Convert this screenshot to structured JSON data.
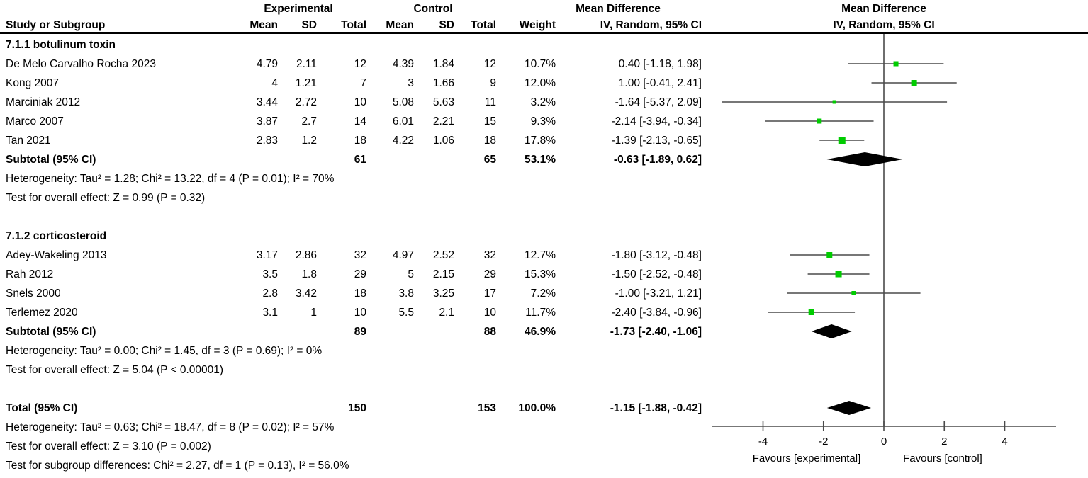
{
  "header": {
    "study_col": "Study or Subgroup",
    "experimental": "Experimental",
    "control": "Control",
    "mean_difference": "Mean Difference",
    "method": "IV, Random, 95% CI",
    "col_mean": "Mean",
    "col_sd": "SD",
    "col_total": "Total",
    "col_weight": "Weight"
  },
  "colors": {
    "marker_green": "#00CC00",
    "plot_line": "#4A4A4A",
    "diamond": "#000000",
    "rule": "#000000",
    "text": "#000000"
  },
  "chart_data": {
    "type": "scatter",
    "variant": "forest-plot",
    "effect_measure": "Mean Difference",
    "model": "IV, Random, 95% CI",
    "xlim": [
      -5.7,
      5.7
    ],
    "x_ticks": [
      -4,
      -2,
      0,
      2,
      4
    ],
    "x_tick_labels": [
      "-4",
      "-2",
      "0",
      "2",
      "4"
    ],
    "favours_left": "Favours [experimental]",
    "favours_right": "Favours [control]",
    "groups": [
      {
        "label": "7.1.1 botulinum toxin",
        "studies": [
          {
            "name": "De Melo Carvalho Rocha 2023",
            "exp_mean": "4.79",
            "exp_sd": "2.11",
            "exp_total": "12",
            "ctl_mean": "4.39",
            "ctl_sd": "1.84",
            "ctl_total": "12",
            "weight": "10.7%",
            "weight_pct": 10.7,
            "ci_label": "0.40 [-1.18, 1.98]",
            "est": 0.4,
            "lo": -1.18,
            "hi": 1.98
          },
          {
            "name": "Kong 2007",
            "exp_mean": "4",
            "exp_sd": "1.21",
            "exp_total": "7",
            "ctl_mean": "3",
            "ctl_sd": "1.66",
            "ctl_total": "9",
            "weight": "12.0%",
            "weight_pct": 12.0,
            "ci_label": "1.00 [-0.41, 2.41]",
            "est": 1.0,
            "lo": -0.41,
            "hi": 2.41
          },
          {
            "name": "Marciniak 2012",
            "exp_mean": "3.44",
            "exp_sd": "2.72",
            "exp_total": "10",
            "ctl_mean": "5.08",
            "ctl_sd": "5.63",
            "ctl_total": "11",
            "weight": "3.2%",
            "weight_pct": 3.2,
            "ci_label": "-1.64 [-5.37, 2.09]",
            "est": -1.64,
            "lo": -5.37,
            "hi": 2.09
          },
          {
            "name": "Marco 2007",
            "exp_mean": "3.87",
            "exp_sd": "2.7",
            "exp_total": "14",
            "ctl_mean": "6.01",
            "ctl_sd": "2.21",
            "ctl_total": "15",
            "weight": "9.3%",
            "weight_pct": 9.3,
            "ci_label": "-2.14 [-3.94, -0.34]",
            "est": -2.14,
            "lo": -3.94,
            "hi": -0.34
          },
          {
            "name": "Tan 2021",
            "exp_mean": "2.83",
            "exp_sd": "1.2",
            "exp_total": "18",
            "ctl_mean": "4.22",
            "ctl_sd": "1.06",
            "ctl_total": "18",
            "weight": "17.8%",
            "weight_pct": 17.8,
            "ci_label": "-1.39 [-2.13, -0.65]",
            "est": -1.39,
            "lo": -2.13,
            "hi": -0.65
          }
        ],
        "subtotal": {
          "label": "Subtotal (95% CI)",
          "exp_total": "61",
          "ctl_total": "65",
          "weight": "53.1%",
          "ci_label": "-0.63 [-1.89, 0.62]",
          "est": -0.63,
          "lo": -1.89,
          "hi": 0.62
        },
        "heterogeneity": "Heterogeneity: Tau² = 1.28; Chi² = 13.22, df = 4 (P = 0.01); I² = 70%",
        "overall_effect": "Test for overall effect: Z = 0.99 (P = 0.32)"
      },
      {
        "label": "7.1.2 corticosteroid",
        "studies": [
          {
            "name": "Adey-Wakeling 2013",
            "exp_mean": "3.17",
            "exp_sd": "2.86",
            "exp_total": "32",
            "ctl_mean": "4.97",
            "ctl_sd": "2.52",
            "ctl_total": "32",
            "weight": "12.7%",
            "weight_pct": 12.7,
            "ci_label": "-1.80 [-3.12, -0.48]",
            "est": -1.8,
            "lo": -3.12,
            "hi": -0.48
          },
          {
            "name": "Rah 2012",
            "exp_mean": "3.5",
            "exp_sd": "1.8",
            "exp_total": "29",
            "ctl_mean": "5",
            "ctl_sd": "2.15",
            "ctl_total": "29",
            "weight": "15.3%",
            "weight_pct": 15.3,
            "ci_label": "-1.50 [-2.52, -0.48]",
            "est": -1.5,
            "lo": -2.52,
            "hi": -0.48
          },
          {
            "name": "Snels 2000",
            "exp_mean": "2.8",
            "exp_sd": "3.42",
            "exp_total": "18",
            "ctl_mean": "3.8",
            "ctl_sd": "3.25",
            "ctl_total": "17",
            "weight": "7.2%",
            "weight_pct": 7.2,
            "ci_label": "-1.00 [-3.21, 1.21]",
            "est": -1.0,
            "lo": -3.21,
            "hi": 1.21
          },
          {
            "name": "Terlemez 2020",
            "exp_mean": "3.1",
            "exp_sd": "1",
            "exp_total": "10",
            "ctl_mean": "5.5",
            "ctl_sd": "2.1",
            "ctl_total": "10",
            "weight": "11.7%",
            "weight_pct": 11.7,
            "ci_label": "-2.40 [-3.84, -0.96]",
            "est": -2.4,
            "lo": -3.84,
            "hi": -0.96
          }
        ],
        "subtotal": {
          "label": "Subtotal (95% CI)",
          "exp_total": "89",
          "ctl_total": "88",
          "weight": "46.9%",
          "ci_label": "-1.73 [-2.40, -1.06]",
          "est": -1.73,
          "lo": -2.4,
          "hi": -1.06
        },
        "heterogeneity": "Heterogeneity: Tau² = 0.00; Chi² = 1.45, df = 3 (P = 0.69); I² = 0%",
        "overall_effect": "Test for overall effect: Z = 5.04 (P < 0.00001)"
      }
    ],
    "total": {
      "label": "Total (95% CI)",
      "exp_total": "150",
      "ctl_total": "153",
      "weight": "100.0%",
      "ci_label": "-1.15 [-1.88, -0.42]",
      "est": -1.15,
      "lo": -1.88,
      "hi": -0.42
    },
    "footer": [
      "Heterogeneity: Tau² = 0.63; Chi² = 18.47, df = 8 (P = 0.02); I² = 57%",
      "Test for overall effect: Z = 3.10 (P = 0.002)",
      "Test for subgroup differences: Chi² = 2.27, df = 1 (P = 0.13), I² = 56.0%"
    ]
  }
}
